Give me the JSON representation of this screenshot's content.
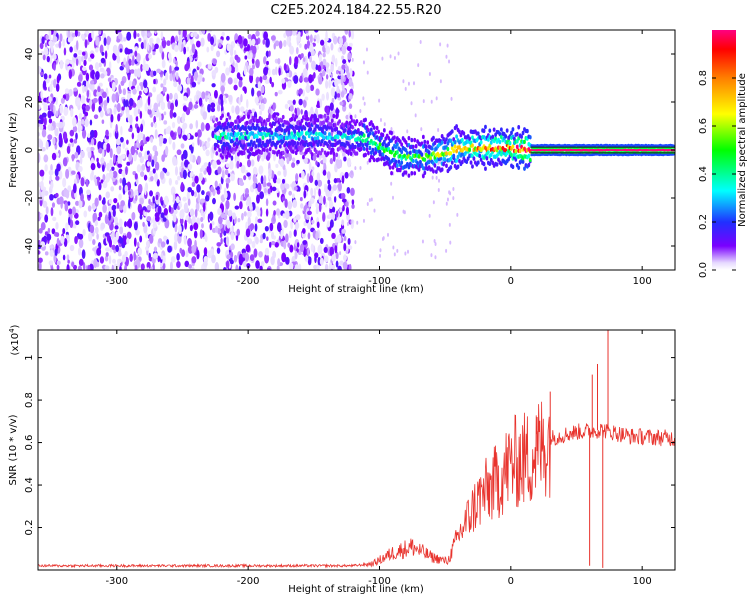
{
  "title": "C2E5.2024.184.22.55.R20",
  "colors": {
    "snr_line": "#e8332d",
    "spectrogram_low": "#8a2be2",
    "ridge_line": "#111111"
  },
  "chart_data": [
    {
      "id": "spectrogram",
      "type": "heatmap",
      "xlabel": "Height of straight line (km)",
      "ylabel": "Frequency (Hz)",
      "xlim": [
        -360,
        125
      ],
      "ylim": [
        -50,
        50
      ],
      "xticks": [
        "-300",
        "-200",
        "-100",
        "0",
        "100"
      ],
      "xtick_values": [
        -300,
        -200,
        -100,
        0,
        100
      ],
      "yticks": [
        "-40",
        "-20",
        "0",
        "20",
        "40"
      ],
      "ytick_values": [
        -40,
        -20,
        0,
        20,
        40
      ],
      "colorbar": {
        "label": "Normalized spectral amplitude",
        "range": [
          0,
          1
        ],
        "ticks": [
          "0.0",
          "0.2",
          "0.4",
          "0.6",
          "0.8"
        ],
        "tick_values": [
          0.0,
          0.2,
          0.4,
          0.6,
          0.8
        ],
        "colormap": "hsv-rainbow"
      },
      "noise_region_x": [
        -360,
        -120
      ],
      "ridge": [
        {
          "x": -220,
          "y": 6
        },
        {
          "x": -180,
          "y": 6
        },
        {
          "x": -140,
          "y": 6
        },
        {
          "x": -110,
          "y": 5
        },
        {
          "x": -95,
          "y": 0
        },
        {
          "x": -80,
          "y": -3
        },
        {
          "x": -65,
          "y": -3
        },
        {
          "x": -50,
          "y": -1
        },
        {
          "x": -40,
          "y": 1
        },
        {
          "x": -20,
          "y": 1
        },
        {
          "x": 0,
          "y": 1
        },
        {
          "x": 15,
          "y": 0
        },
        {
          "x": 125,
          "y": 0
        }
      ],
      "ridge_amplitude": [
        {
          "x": -220,
          "a": 0.35
        },
        {
          "x": -130,
          "a": 0.3
        },
        {
          "x": -100,
          "a": 0.45
        },
        {
          "x": -70,
          "a": 0.5
        },
        {
          "x": -40,
          "a": 0.7
        },
        {
          "x": 0,
          "a": 0.9
        },
        {
          "x": 15,
          "a": 1.0
        },
        {
          "x": 125,
          "a": 1.0
        }
      ]
    },
    {
      "id": "snr",
      "type": "line",
      "xlabel": "Height of straight line (km)",
      "ylabel": "SNR (10 * v/v)",
      "yscale_label": "(x10",
      "yscale_exp": "4",
      "yscale_close": ")",
      "xlim": [
        -360,
        125
      ],
      "ylim": [
        0,
        1.13
      ],
      "xticks": [
        "-300",
        "-200",
        "-100",
        "0",
        "100"
      ],
      "xtick_values": [
        -300,
        -200,
        -100,
        0,
        100
      ],
      "yticks": [
        "0.2",
        "0.4",
        "0.6",
        "0.8",
        "1"
      ],
      "ytick_values": [
        0.2,
        0.4,
        0.6,
        0.8,
        1.0
      ],
      "series": [
        {
          "values_envelope": [
            {
              "x": -360,
              "y": 0.02
            },
            {
              "x": -120,
              "y": 0.02
            },
            {
              "x": -105,
              "y": 0.03
            },
            {
              "x": -90,
              "y": 0.08
            },
            {
              "x": -75,
              "y": 0.11
            },
            {
              "x": -60,
              "y": 0.06
            },
            {
              "x": -48,
              "y": 0.04
            },
            {
              "x": -40,
              "y": 0.16
            },
            {
              "x": -25,
              "y": 0.33
            },
            {
              "x": -10,
              "y": 0.42
            },
            {
              "x": 0,
              "y": 0.5
            },
            {
              "x": 15,
              "y": 0.53
            },
            {
              "x": 30,
              "y": 0.62
            },
            {
              "x": 50,
              "y": 0.65
            },
            {
              "x": 70,
              "y": 0.66
            },
            {
              "x": 90,
              "y": 0.63
            },
            {
              "x": 125,
              "y": 0.62
            }
          ],
          "spikes": [
            {
              "x": 60,
              "y": 0.02
            },
            {
              "x": 62,
              "y": 0.92
            },
            {
              "x": 66,
              "y": 0.97
            },
            {
              "x": 70,
              "y": 0.01
            },
            {
              "x": 74,
              "y": 1.13
            },
            {
              "x": 20,
              "y": 0.72
            },
            {
              "x": 30,
              "y": 0.84
            }
          ]
        }
      ]
    }
  ]
}
